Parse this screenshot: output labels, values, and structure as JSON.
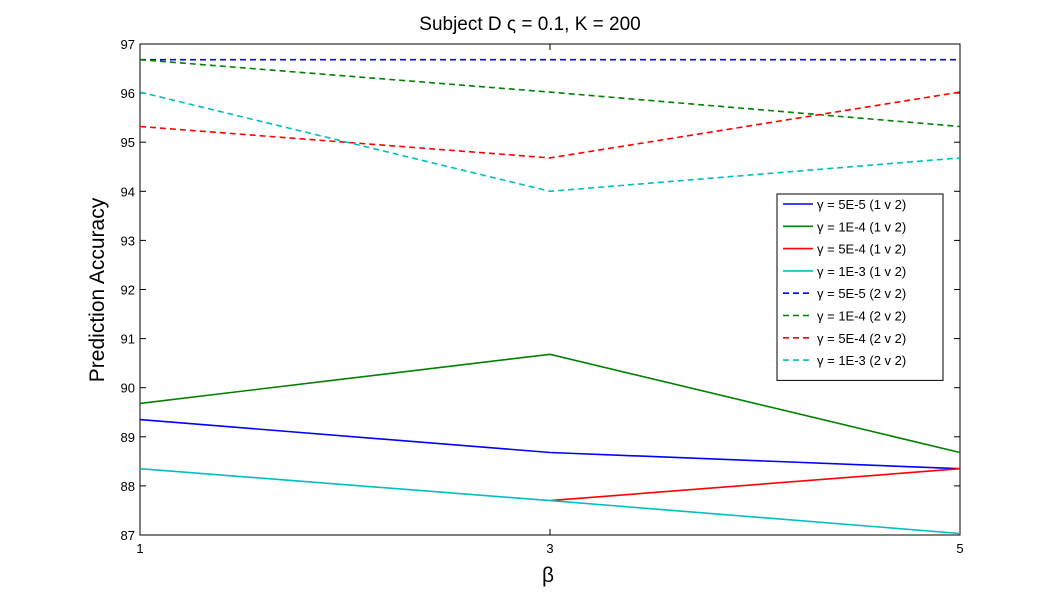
{
  "chart_data": {
    "type": "line",
    "title": "Subject D  ς = 0.1, K = 200",
    "xlabel": "β",
    "ylabel": "Prediction Accuracy",
    "xlim": [
      1,
      5
    ],
    "ylim": [
      87,
      97
    ],
    "xticks": [
      "1",
      "3",
      "5"
    ],
    "yticks": [
      "87",
      "88",
      "89",
      "90",
      "91",
      "92",
      "93",
      "94",
      "95",
      "96",
      "97"
    ],
    "grid": false,
    "legend_position": "right",
    "x": [
      1,
      3,
      5
    ],
    "series": [
      {
        "name": "γ = 5E-5 (1 v 2)",
        "color": "#0000ff",
        "dashed": false,
        "values": [
          89.35,
          88.68,
          88.35
        ]
      },
      {
        "name": "γ = 1E-4 (1 v 2)",
        "color": "#008000",
        "dashed": false,
        "values": [
          89.68,
          90.68,
          88.68
        ]
      },
      {
        "name": "γ = 5E-4 (1 v 2)",
        "color": "#ff0000",
        "dashed": false,
        "values": [
          null,
          87.7,
          88.35
        ]
      },
      {
        "name": "γ = 1E-3 (1 v 2)",
        "color": "#00bfbf",
        "dashed": false,
        "values": [
          88.35,
          87.7,
          87.03
        ]
      },
      {
        "name": "γ = 5E-5 (2 v 2)",
        "color": "#0000ff",
        "dashed": true,
        "values": [
          96.68,
          96.68,
          96.68
        ]
      },
      {
        "name": "γ = 1E-4 (2 v 2)",
        "color": "#008000",
        "dashed": true,
        "values": [
          96.68,
          96.02,
          95.32
        ]
      },
      {
        "name": "γ = 5E-4 (2 v 2)",
        "color": "#ff0000",
        "dashed": true,
        "values": [
          95.32,
          94.68,
          96.02
        ]
      },
      {
        "name": "γ = 1E-3 (2 v 2)",
        "color": "#00bfbf",
        "dashed": true,
        "values": [
          96.02,
          94.0,
          94.68
        ]
      }
    ]
  }
}
